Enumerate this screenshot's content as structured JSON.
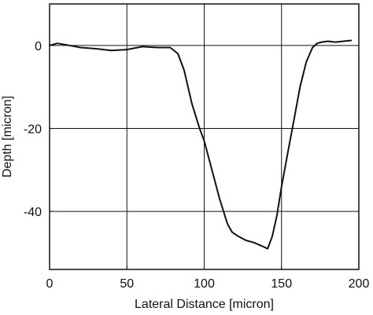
{
  "chart_data": {
    "type": "line",
    "title": "",
    "xlabel": "Lateral Distance [micron]",
    "ylabel": "Depth [micron]",
    "xlim": [
      0,
      200
    ],
    "ylim": [
      -54,
      10
    ],
    "grid": true,
    "xticks": [
      {
        "value": 0,
        "label": "0"
      },
      {
        "value": 50,
        "label": "50"
      },
      {
        "value": 100,
        "label": "100"
      },
      {
        "value": 150,
        "label": "150"
      },
      {
        "value": 200,
        "label": "200"
      }
    ],
    "yticks": [
      {
        "value": 0,
        "label": "0"
      },
      {
        "value": -20,
        "label": "-20"
      },
      {
        "value": -40,
        "label": "-40"
      }
    ],
    "series": [
      {
        "x": [
          0,
          5,
          10,
          20,
          30,
          40,
          50,
          60,
          70,
          78,
          83,
          87,
          92,
          97,
          100,
          105,
          110,
          115,
          118,
          122,
          127,
          132,
          137,
          141,
          144,
          147,
          150,
          154,
          158,
          162,
          166,
          170,
          173,
          176,
          180,
          185,
          190,
          195
        ],
        "y": [
          0,
          0.5,
          0.2,
          -0.5,
          -0.8,
          -1.2,
          -1,
          -0.3,
          -0.5,
          -0.5,
          -2,
          -6,
          -14,
          -20,
          -23,
          -30,
          -37,
          -43,
          -45,
          -46,
          -47,
          -47.5,
          -48.3,
          -49,
          -46,
          -41,
          -34,
          -26,
          -18,
          -10,
          -4,
          -0.5,
          0.5,
          0.8,
          1,
          0.8,
          1,
          1.2
        ]
      }
    ],
    "colors": {
      "line": "#111111",
      "grid": "#111111",
      "axes": "#111111"
    }
  }
}
